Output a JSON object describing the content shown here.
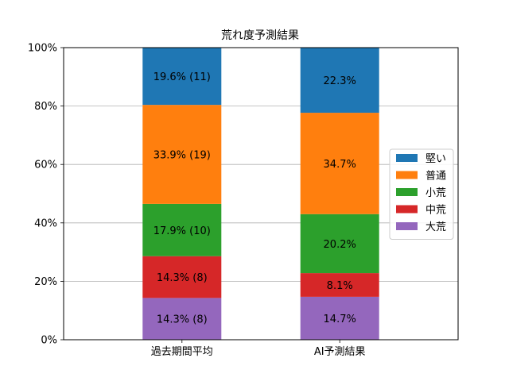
{
  "chart_data": {
    "type": "bar",
    "stacked": true,
    "title": "荒れ度予測結果",
    "xlabel": "",
    "ylabel": "",
    "ylim": [
      0,
      100
    ],
    "yticks": [
      "0%",
      "20%",
      "40%",
      "60%",
      "80%",
      "100%"
    ],
    "grid": "y",
    "categories": [
      "過去期間平均",
      "AI予測結果"
    ],
    "legend_position": "right",
    "series": [
      {
        "name": "大荒",
        "color": "#9467bd",
        "values": [
          14.3,
          14.7
        ],
        "labels": [
          "14.3% (8)",
          "14.7%"
        ]
      },
      {
        "name": "中荒",
        "color": "#d62728",
        "values": [
          14.3,
          8.1
        ],
        "labels": [
          "14.3% (8)",
          "8.1%"
        ]
      },
      {
        "name": "小荒",
        "color": "#2ca02c",
        "values": [
          17.9,
          20.2
        ],
        "labels": [
          "17.9% (10)",
          "20.2%"
        ]
      },
      {
        "name": "普通",
        "color": "#ff7f0e",
        "values": [
          33.9,
          34.7
        ],
        "labels": [
          "33.9% (19)",
          "34.7%"
        ]
      },
      {
        "name": "堅い",
        "color": "#1f77b4",
        "values": [
          19.6,
          22.3
        ],
        "labels": [
          "19.6% (11)",
          "22.3%"
        ]
      }
    ],
    "legend_order": [
      "堅い",
      "普通",
      "小荒",
      "中荒",
      "大荒"
    ]
  }
}
